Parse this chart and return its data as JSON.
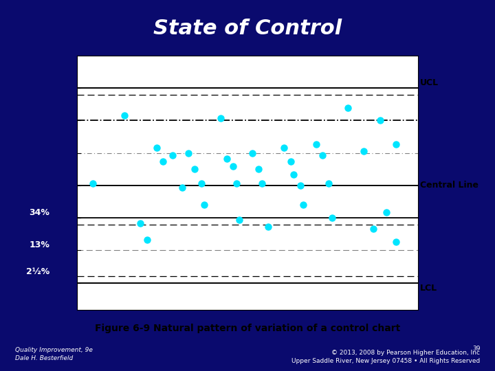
{
  "title": "State of Control",
  "title_bg": "#4a52a0",
  "title_color": "white",
  "title_edge": "#8888cc",
  "figure_bg": "#0a0a6e",
  "chart_bg": "white",
  "subtitle": "Figure 6-9 Natural pattern of variation of a control chart",
  "footer_left": "Quality Improvement, 9e\nDale H. Besterfield",
  "footer_right": "39\n© 2013, 2008 by Pearson Higher Education, Inc\nUpper Saddle River, New Jersey 07458 • All Rights Reserved",
  "dot_color": "#00e5ff",
  "ucl": 9,
  "lcl": -9,
  "central": 0,
  "labels_left": [
    {
      "y": -2.5,
      "label": "34%"
    },
    {
      "y": -5.5,
      "label": "13%"
    },
    {
      "y": -8.0,
      "label": "2½%"
    }
  ],
  "labels_right": [
    {
      "y": 9.5,
      "label": "UCL"
    },
    {
      "y": 0.0,
      "label": "Central Line"
    },
    {
      "y": -9.5,
      "label": "LCL"
    }
  ],
  "dots": [
    [
      1.0,
      0.2
    ],
    [
      2.0,
      6.5
    ],
    [
      2.5,
      -3.5
    ],
    [
      2.7,
      -5.0
    ],
    [
      3.0,
      3.5
    ],
    [
      3.2,
      2.2
    ],
    [
      3.5,
      2.8
    ],
    [
      3.8,
      -0.2
    ],
    [
      4.0,
      3.0
    ],
    [
      4.2,
      1.5
    ],
    [
      4.4,
      0.2
    ],
    [
      4.5,
      -1.8
    ],
    [
      5.0,
      6.2
    ],
    [
      5.2,
      2.5
    ],
    [
      5.4,
      1.8
    ],
    [
      5.5,
      0.2
    ],
    [
      5.6,
      -3.2
    ],
    [
      6.0,
      3.0
    ],
    [
      6.2,
      1.5
    ],
    [
      6.3,
      0.2
    ],
    [
      6.5,
      -3.8
    ],
    [
      7.0,
      3.5
    ],
    [
      7.2,
      2.2
    ],
    [
      7.3,
      1.0
    ],
    [
      7.5,
      0.0
    ],
    [
      7.6,
      -1.8
    ],
    [
      8.0,
      3.8
    ],
    [
      8.2,
      2.8
    ],
    [
      8.4,
      0.2
    ],
    [
      8.5,
      -3.0
    ],
    [
      9.0,
      7.2
    ],
    [
      9.5,
      3.2
    ],
    [
      9.8,
      -4.0
    ],
    [
      10.0,
      6.0
    ],
    [
      10.2,
      -2.5
    ],
    [
      10.5,
      3.8
    ],
    [
      10.5,
      -5.2
    ]
  ],
  "xlim": [
    0.5,
    11.2
  ],
  "ylim": [
    -11.5,
    12.0
  ]
}
